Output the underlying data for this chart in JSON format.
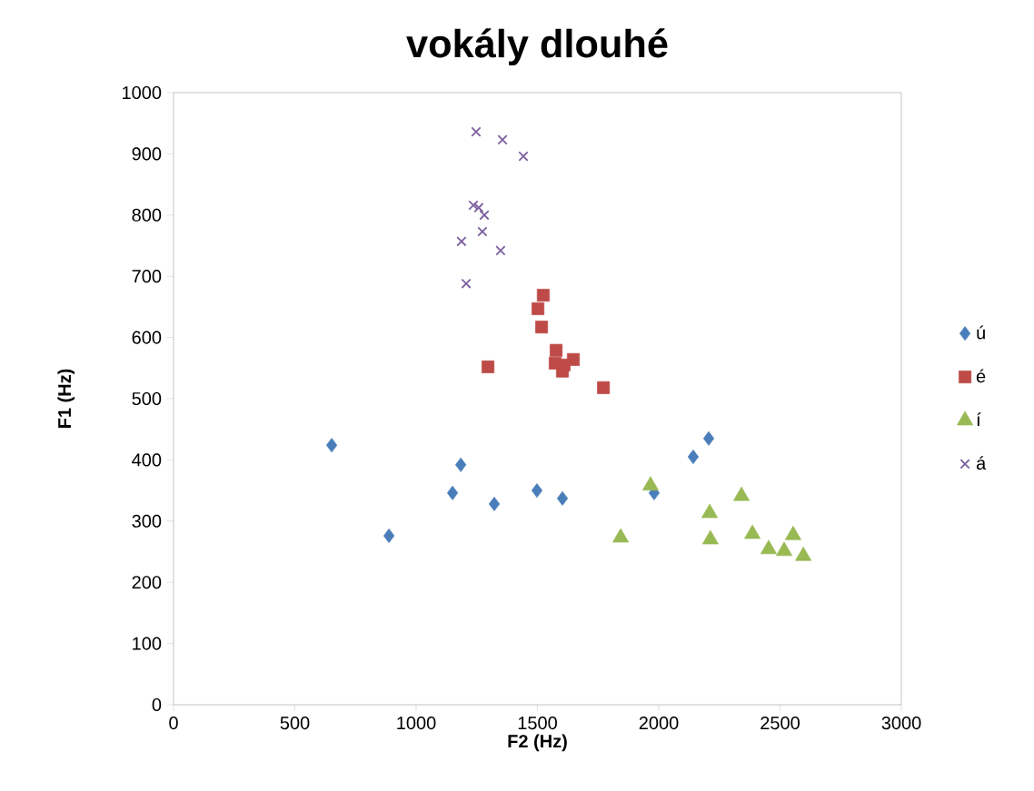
{
  "chart_data": {
    "type": "scatter",
    "title": "vokály dlouhé",
    "xlabel": "F2 (Hz)",
    "ylabel": "F1 (Hz)",
    "xlim": [
      0,
      3000
    ],
    "ylim": [
      0,
      1000
    ],
    "xticks": [
      0,
      500,
      1000,
      1500,
      2000,
      2500,
      3000
    ],
    "yticks": [
      0,
      100,
      200,
      300,
      400,
      500,
      600,
      700,
      800,
      900,
      1000
    ],
    "grid": false,
    "legend": "right",
    "series": [
      {
        "name": "ú",
        "color": "#4a7ebb",
        "marker": "diamond",
        "x": [
          652,
          888,
          1150,
          1184,
          1322,
          1498,
          1603,
          1981,
          2142,
          2206
        ],
        "values": [
          424,
          276,
          346,
          392,
          328,
          350,
          337,
          346,
          405,
          435
        ]
      },
      {
        "name": "é",
        "color": "#be4b48",
        "marker": "square",
        "x": [
          1524,
          1502,
          1517,
          1577,
          1573,
          1648,
          1603,
          1296,
          1772,
          1610
        ],
        "values": [
          669,
          647,
          617,
          579,
          558,
          564,
          545,
          552,
          518,
          555
        ]
      },
      {
        "name": "í",
        "color": "#98b954",
        "marker": "triangle",
        "x": [
          1966,
          2341,
          2210,
          2213,
          2386,
          2453,
          2517,
          2554,
          2596,
          1843
        ],
        "values": [
          358,
          341,
          313,
          270,
          279,
          254,
          251,
          277,
          243,
          273
        ]
      },
      {
        "name": "á",
        "color": "#7d60a0",
        "marker": "cross",
        "x": [
          1247,
          1356,
          1442,
          1236,
          1258,
          1281,
          1273,
          1187,
          1348,
          1206
        ],
        "values": [
          936,
          923,
          896,
          816,
          812,
          800,
          773,
          757,
          742,
          688
        ]
      }
    ]
  }
}
